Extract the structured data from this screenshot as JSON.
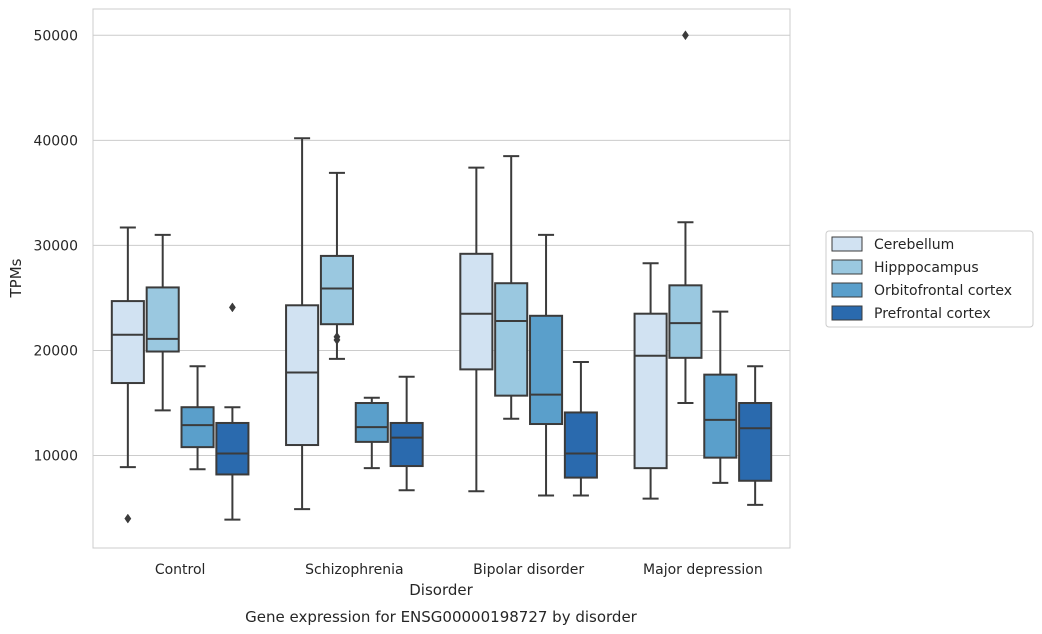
{
  "chart_data": {
    "type": "box",
    "title": "Gene expression for ENSG00000198727 by disorder",
    "xlabel": "Disorder",
    "ylabel": "TPMs",
    "ylim": [
      1200,
      52500
    ],
    "yticks": [
      10000,
      20000,
      30000,
      40000,
      50000
    ],
    "grid": "horizontal",
    "legend_position": "right",
    "categories": [
      "Control",
      "Schizophrenia",
      "Bipolar disorder",
      "Major depression"
    ],
    "series": [
      {
        "name": "Cerebellum",
        "color": "#d1e2f2",
        "boxes": [
          {
            "whisker_low": 8900,
            "q1": 16900,
            "median": 21500,
            "q3": 24700,
            "whisker_high": 31700,
            "outliers": [
              4000
            ]
          },
          {
            "whisker_low": 4900,
            "q1": 11000,
            "median": 17900,
            "q3": 24300,
            "whisker_high": 40200,
            "outliers": []
          },
          {
            "whisker_low": 6600,
            "q1": 18200,
            "median": 23500,
            "q3": 29200,
            "whisker_high": 37400,
            "outliers": []
          },
          {
            "whisker_low": 5900,
            "q1": 8800,
            "median": 19500,
            "q3": 23500,
            "whisker_high": 28300,
            "outliers": []
          }
        ]
      },
      {
        "name": "Hipppocampus",
        "color": "#9ac8e0",
        "boxes": [
          {
            "whisker_low": 14300,
            "q1": 19900,
            "median": 21100,
            "q3": 26000,
            "whisker_high": 31000,
            "outliers": []
          },
          {
            "whisker_low": 19200,
            "q1": 22500,
            "median": 25900,
            "q3": 29000,
            "whisker_high": 36900,
            "outliers": [
              21000,
              21300
            ]
          },
          {
            "whisker_low": 13500,
            "q1": 15700,
            "median": 22800,
            "q3": 26400,
            "whisker_high": 38500,
            "outliers": []
          },
          {
            "whisker_low": 15000,
            "q1": 19300,
            "median": 22600,
            "q3": 26200,
            "whisker_high": 32200,
            "outliers": [
              50000
            ]
          }
        ]
      },
      {
        "name": "Orbitofrontal cortex",
        "color": "#5a9fcb",
        "boxes": [
          {
            "whisker_low": 8700,
            "q1": 10800,
            "median": 12900,
            "q3": 14600,
            "whisker_high": 18500,
            "outliers": []
          },
          {
            "whisker_low": 8800,
            "q1": 11300,
            "median": 12700,
            "q3": 15000,
            "whisker_high": 15500,
            "outliers": []
          },
          {
            "whisker_low": 6200,
            "q1": 13000,
            "median": 15800,
            "q3": 23300,
            "whisker_high": 31000,
            "outliers": []
          },
          {
            "whisker_low": 7400,
            "q1": 9800,
            "median": 13400,
            "q3": 17700,
            "whisker_high": 23700,
            "outliers": []
          }
        ]
      },
      {
        "name": "Prefrontal cortex",
        "color": "#2a6aae",
        "boxes": [
          {
            "whisker_low": 3900,
            "q1": 8200,
            "median": 10200,
            "q3": 13100,
            "whisker_high": 14600,
            "outliers": [
              24100
            ]
          },
          {
            "whisker_low": 6700,
            "q1": 9000,
            "median": 11700,
            "q3": 13100,
            "whisker_high": 17500,
            "outliers": []
          },
          {
            "whisker_low": 6200,
            "q1": 7900,
            "median": 10200,
            "q3": 14100,
            "whisker_high": 18900,
            "outliers": []
          },
          {
            "whisker_low": 5300,
            "q1": 7600,
            "median": 12600,
            "q3": 15000,
            "whisker_high": 18500,
            "outliers": []
          }
        ]
      }
    ]
  },
  "colors": {
    "grid": "#cccccc",
    "frame": "#cccccc",
    "line": "#3b3b3b"
  }
}
